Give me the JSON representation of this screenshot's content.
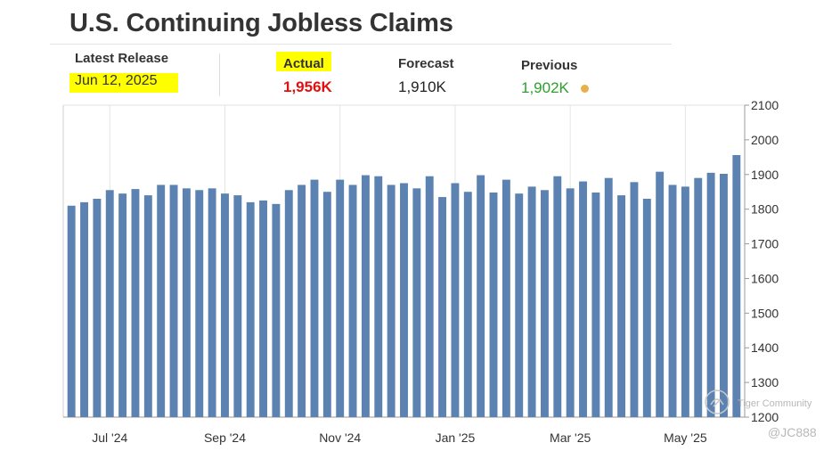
{
  "header": {
    "title": "U.S. Continuing Jobless Claims",
    "latest_release_label": "Latest Release",
    "latest_release_value": "Jun 12, 2025",
    "actual_label": "Actual",
    "actual_value": "1,956K",
    "forecast_label": "Forecast",
    "forecast_value": "1,910K",
    "previous_label": "Previous",
    "previous_value": "1,902K"
  },
  "colors": {
    "bar": "#5b82b1",
    "actual": "#e01010",
    "previous": "#2ca02c",
    "highlight": "#ffff00",
    "dot": "#e8b04a"
  },
  "watermark": {
    "brand": "Tiger Community",
    "handle": "@JC888"
  },
  "chart_data": {
    "type": "bar",
    "ylim": [
      1200,
      2100
    ],
    "yticks": [
      1200,
      1300,
      1400,
      1500,
      1600,
      1700,
      1800,
      1900,
      2000,
      2100
    ],
    "xtick_labels": [
      {
        "label": "Jul '24",
        "index": 3
      },
      {
        "label": "Sep '24",
        "index": 12
      },
      {
        "label": "Nov '24",
        "index": 21
      },
      {
        "label": "Jan '25",
        "index": 30
      },
      {
        "label": "Mar '25",
        "index": 39
      },
      {
        "label": "May '25",
        "index": 48
      }
    ],
    "grid": "vertical",
    "values": [
      1810,
      1820,
      1830,
      1855,
      1845,
      1858,
      1840,
      1870,
      1870,
      1860,
      1855,
      1860,
      1845,
      1840,
      1820,
      1825,
      1815,
      1855,
      1870,
      1885,
      1850,
      1885,
      1870,
      1898,
      1895,
      1870,
      1875,
      1860,
      1895,
      1835,
      1875,
      1850,
      1898,
      1848,
      1885,
      1845,
      1865,
      1855,
      1895,
      1860,
      1880,
      1848,
      1890,
      1840,
      1878,
      1830,
      1908,
      1870,
      1865,
      1890,
      1905,
      1902,
      1956
    ]
  }
}
